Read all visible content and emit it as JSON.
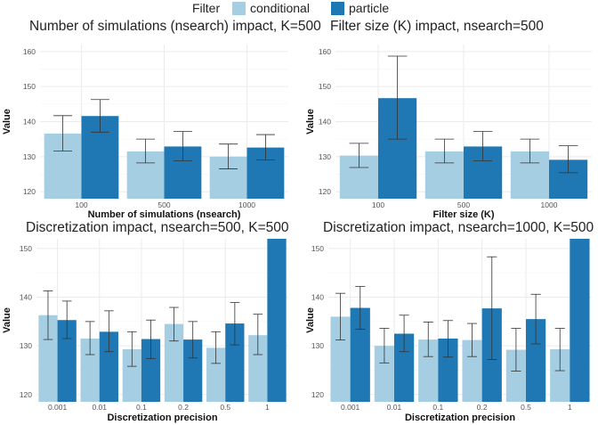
{
  "legend": {
    "title": "Filter",
    "items": [
      {
        "label": "conditional",
        "color": "#a6cee3"
      },
      {
        "label": "particle",
        "color": "#1f78b4"
      }
    ]
  },
  "chart_data": [
    {
      "type": "bar",
      "title": "Number of simulations (nsearch) impact, K=500",
      "xlabel": "Number of simulations (nsearch)",
      "ylabel": "Value",
      "categories": [
        "100",
        "500",
        "1000"
      ],
      "ylim": [
        118,
        162
      ],
      "yticks": [
        120,
        130,
        140,
        150,
        160
      ],
      "series": [
        {
          "name": "conditional",
          "values": [
            136.6,
            131.5,
            130.0
          ],
          "err_low": [
            131.6,
            128.2,
            126.5
          ],
          "err_high": [
            141.7,
            135.0,
            133.6
          ]
        },
        {
          "name": "particle",
          "values": [
            141.6,
            132.9,
            132.6
          ],
          "err_low": [
            137.0,
            128.8,
            129.1
          ],
          "err_high": [
            146.3,
            137.2,
            136.3
          ]
        }
      ],
      "grid": true
    },
    {
      "type": "bar",
      "title": "Filter size (K) impact, nsearch=500",
      "xlabel": "Filter size (K)",
      "ylabel": "Value",
      "categories": [
        "100",
        "500",
        "1000"
      ],
      "ylim": [
        118,
        162
      ],
      "yticks": [
        120,
        130,
        140,
        150,
        160
      ],
      "series": [
        {
          "name": "conditional",
          "values": [
            130.3,
            131.5,
            131.5
          ],
          "err_low": [
            126.9,
            128.2,
            128.2
          ],
          "err_high": [
            133.8,
            135.0,
            135.0
          ]
        },
        {
          "name": "particle",
          "values": [
            146.7,
            132.9,
            129.1
          ],
          "err_low": [
            135.0,
            128.8,
            125.4
          ],
          "err_high": [
            158.7,
            137.2,
            133.1
          ]
        }
      ],
      "grid": true
    },
    {
      "type": "bar",
      "title": "Discretization impact, nsearch=500, K=500",
      "xlabel": "Discretization precision",
      "ylabel": "Value",
      "categories": [
        "0.001",
        "0.01",
        "0.1",
        "0.2",
        "0.5",
        "1"
      ],
      "ylim": [
        118.5,
        152
      ],
      "yticks": [
        120,
        130,
        140,
        150
      ],
      "series": [
        {
          "name": "conditional",
          "values": [
            136.3,
            131.5,
            129.3,
            134.5,
            129.6,
            132.2
          ],
          "err_low": [
            131.3,
            128.2,
            125.8,
            131.0,
            126.4,
            128.2
          ],
          "err_high": [
            141.3,
            135.0,
            132.9,
            137.9,
            132.9,
            136.5
          ]
        },
        {
          "name": "particle",
          "values": [
            135.3,
            132.9,
            131.4,
            131.3,
            134.6,
            152.0
          ],
          "err_low": [
            131.5,
            128.8,
            127.4,
            127.5,
            130.2,
            null
          ],
          "err_high": [
            139.2,
            137.2,
            135.3,
            135.0,
            138.9,
            null
          ]
        }
      ],
      "grid": true
    },
    {
      "type": "bar",
      "title": "Discretization impact, nsearch=1000, K=500",
      "xlabel": "Discretization precision",
      "ylabel": "Value",
      "categories": [
        "0.001",
        "0.01",
        "0.1",
        "0.2",
        "0.5",
        "1"
      ],
      "ylim": [
        118.5,
        152
      ],
      "yticks": [
        120,
        130,
        140,
        150
      ],
      "series": [
        {
          "name": "conditional",
          "values": [
            136.0,
            130.0,
            131.3,
            131.2,
            129.2,
            129.3
          ],
          "err_low": [
            131.2,
            126.5,
            127.8,
            127.8,
            124.8,
            124.9
          ],
          "err_high": [
            140.8,
            133.6,
            134.9,
            134.6,
            133.6,
            133.6
          ]
        },
        {
          "name": "particle",
          "values": [
            137.8,
            132.5,
            131.5,
            137.7,
            135.5,
            152.0
          ],
          "err_low": [
            133.4,
            128.8,
            127.7,
            127.2,
            130.4,
            null
          ],
          "err_high": [
            142.2,
            136.3,
            135.2,
            148.3,
            140.6,
            null
          ]
        }
      ],
      "grid": true
    }
  ]
}
